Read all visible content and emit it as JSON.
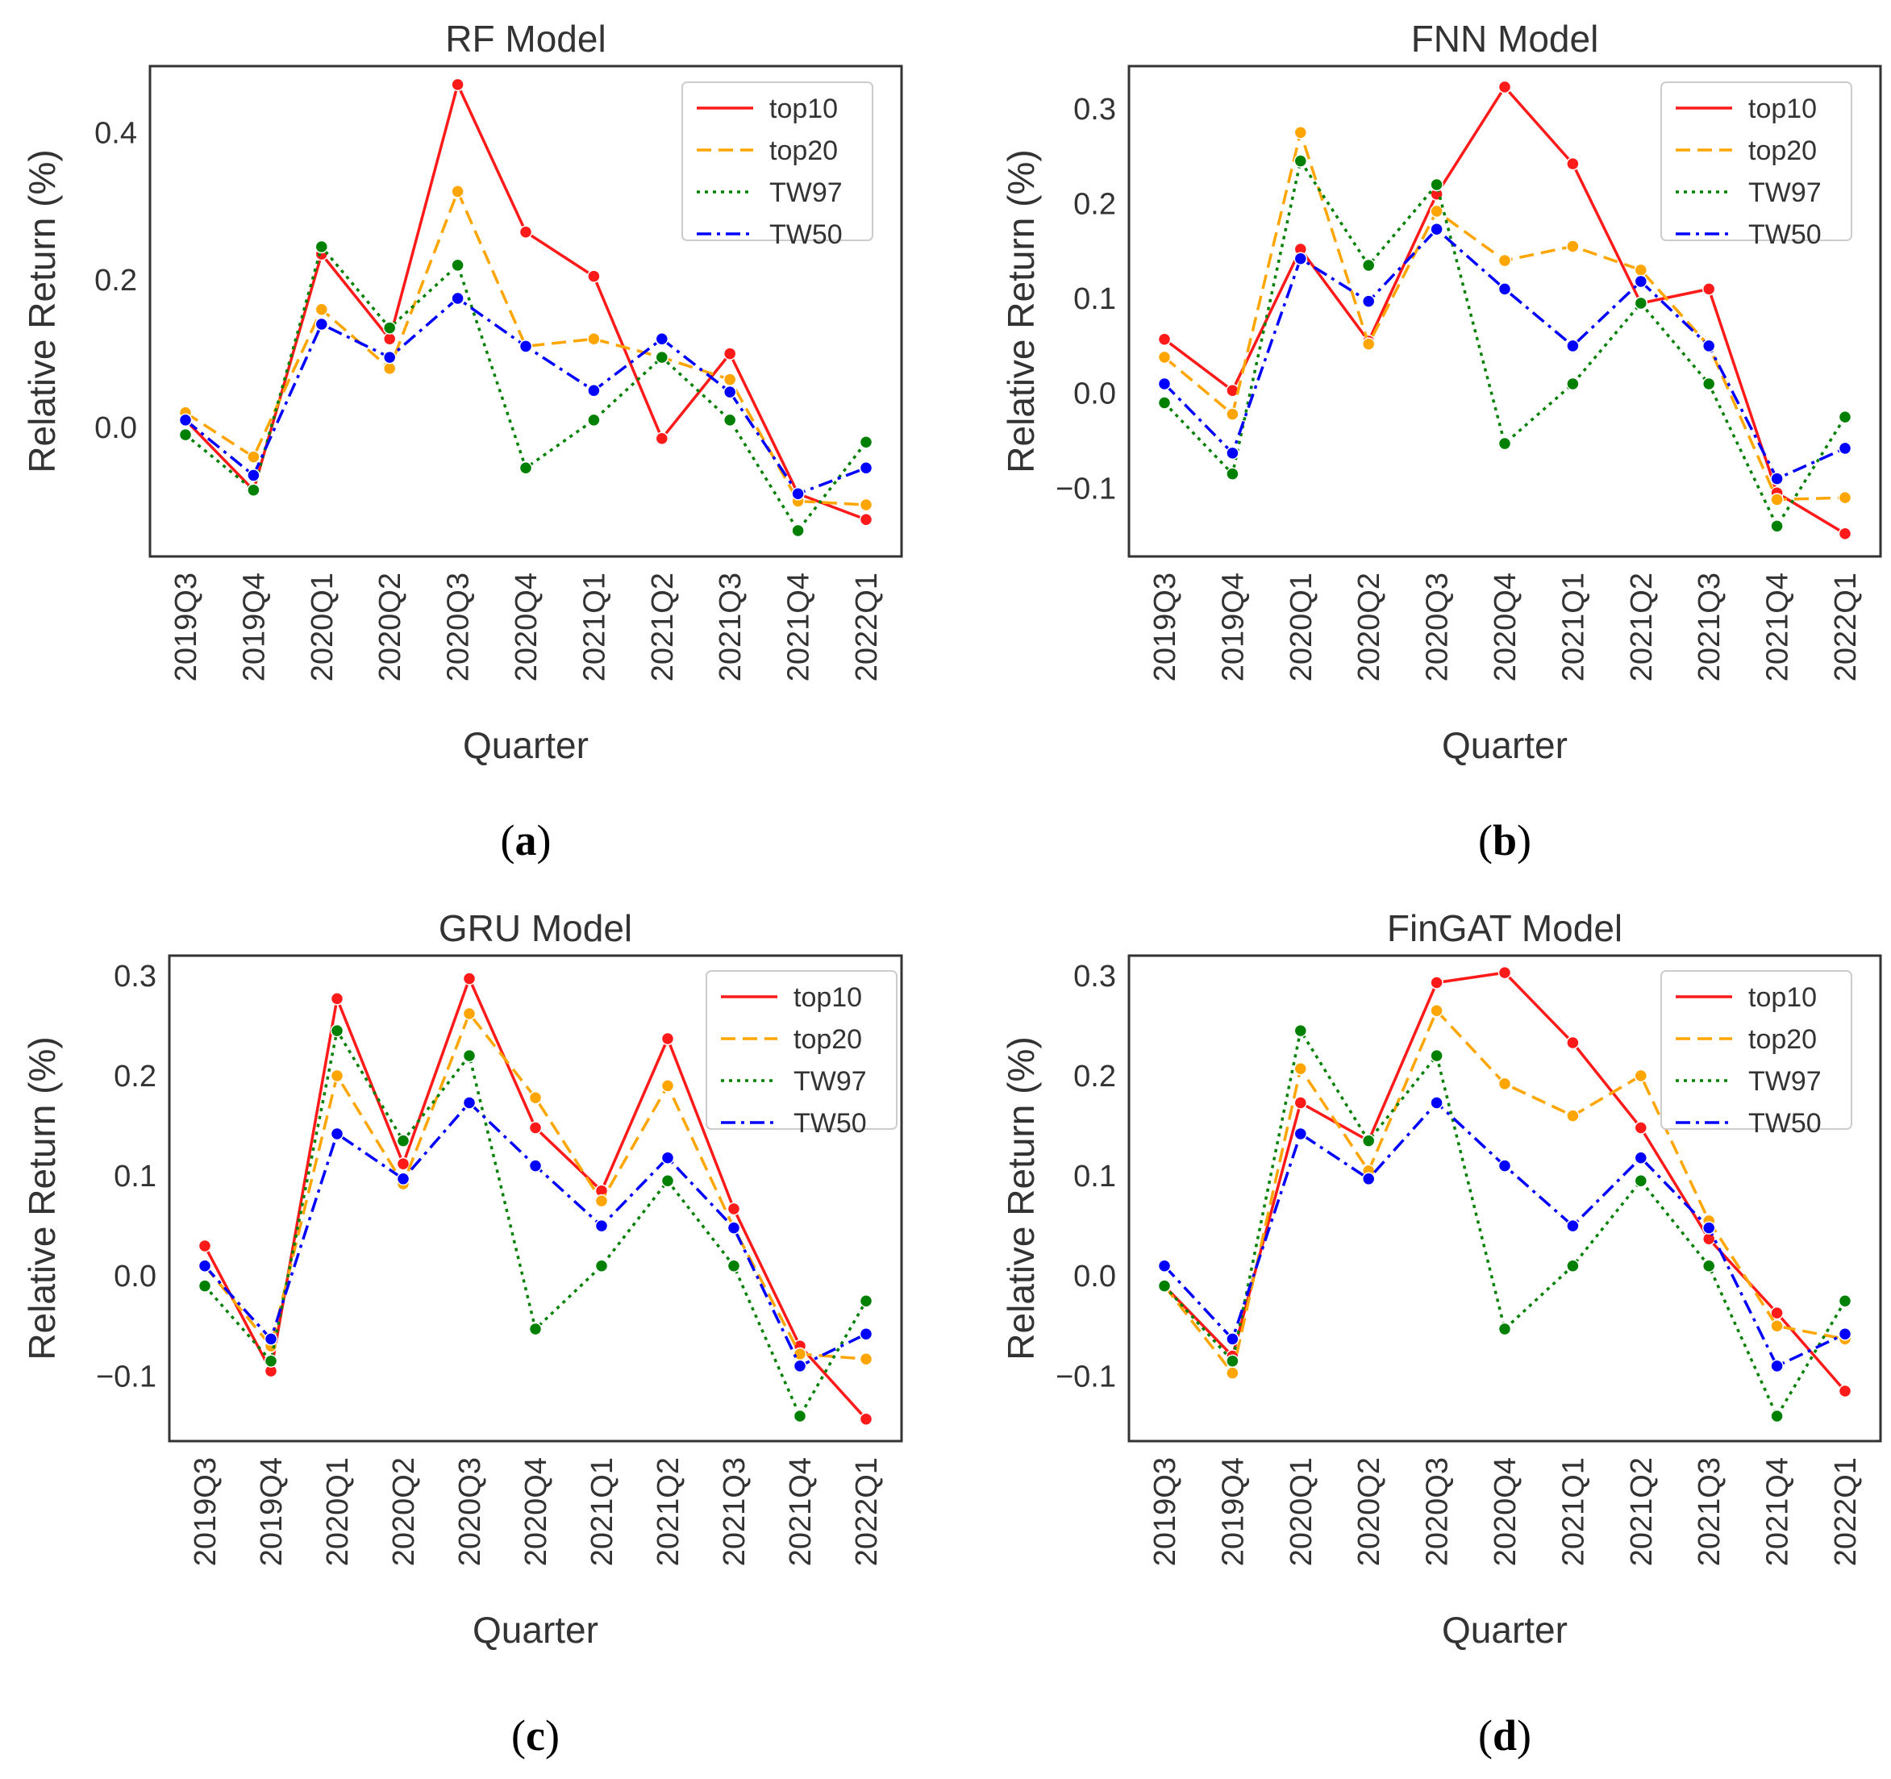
{
  "colors": {
    "top10": "#ff1a1a",
    "top20": "#ffa500",
    "TW97": "#008000",
    "TW50": "#0000ff",
    "axis": "#333333"
  },
  "chart_data": [
    {
      "type": "line",
      "title": "RF Model",
      "caption_letter": "a",
      "xlabel": "Quarter",
      "ylabel": "Relative Return (%)",
      "ylim": [
        -0.175,
        0.49
      ],
      "yticks": [
        0.0,
        0.2,
        0.4
      ],
      "ytick_labels": [
        "0.0",
        "0.2",
        "0.4"
      ],
      "categories": [
        "2019Q3",
        "2019Q4",
        "2020Q1",
        "2020Q2",
        "2020Q3",
        "2020Q4",
        "2021Q1",
        "2021Q2",
        "2021Q3",
        "2021Q4",
        "2022Q1"
      ],
      "series": [
        {
          "name": "top10",
          "style": "solid",
          "values": [
            0.01,
            -0.085,
            0.235,
            0.12,
            0.465,
            0.265,
            0.205,
            -0.015,
            0.1,
            -0.09,
            -0.125
          ]
        },
        {
          "name": "top20",
          "style": "dashed",
          "values": [
            0.02,
            -0.04,
            0.16,
            0.08,
            0.32,
            0.11,
            0.12,
            0.095,
            0.065,
            -0.1,
            -0.105
          ]
        },
        {
          "name": "TW97",
          "style": "dotted",
          "values": [
            -0.01,
            -0.085,
            0.245,
            0.135,
            0.22,
            -0.055,
            0.01,
            0.095,
            0.01,
            -0.14,
            -0.02
          ]
        },
        {
          "name": "TW50",
          "style": "dashdot",
          "values": [
            0.01,
            -0.065,
            0.14,
            0.095,
            0.175,
            0.11,
            0.05,
            0.12,
            0.048,
            -0.09,
            -0.055
          ]
        }
      ]
    },
    {
      "type": "line",
      "title": "FNN Model",
      "caption_letter": "b",
      "xlabel": "Quarter",
      "ylabel": "Relative Return (%)",
      "ylim": [
        -0.172,
        0.345
      ],
      "yticks": [
        -0.1,
        0.0,
        0.1,
        0.2,
        0.3
      ],
      "ytick_labels": [
        "−0.1",
        "0.0",
        "0.1",
        "0.2",
        "0.3"
      ],
      "categories": [
        "2019Q3",
        "2019Q4",
        "2020Q1",
        "2020Q2",
        "2020Q3",
        "2020Q4",
        "2021Q1",
        "2021Q2",
        "2021Q3",
        "2021Q4",
        "2022Q1"
      ],
      "series": [
        {
          "name": "top10",
          "style": "solid",
          "values": [
            0.057,
            0.003,
            0.152,
            0.055,
            0.21,
            0.323,
            0.242,
            0.095,
            0.11,
            -0.105,
            -0.148
          ]
        },
        {
          "name": "top20",
          "style": "dashed",
          "values": [
            0.038,
            -0.022,
            0.275,
            0.052,
            0.192,
            0.14,
            0.155,
            0.13,
            0.05,
            -0.112,
            -0.11
          ]
        },
        {
          "name": "TW97",
          "style": "dotted",
          "values": [
            -0.01,
            -0.085,
            0.245,
            0.135,
            0.22,
            -0.053,
            0.01,
            0.095,
            0.01,
            -0.14,
            -0.025
          ]
        },
        {
          "name": "TW50",
          "style": "dashdot",
          "values": [
            0.01,
            -0.063,
            0.142,
            0.097,
            0.173,
            0.11,
            0.05,
            0.118,
            0.05,
            -0.09,
            -0.058
          ]
        }
      ]
    },
    {
      "type": "line",
      "title": "GRU Model",
      "caption_letter": "c",
      "xlabel": "Quarter",
      "ylabel": "Relative Return (%)",
      "ylim": [
        -0.165,
        0.32
      ],
      "yticks": [
        -0.1,
        0.0,
        0.1,
        0.2,
        0.3
      ],
      "ytick_labels": [
        "−0.1",
        "0.0",
        "0.1",
        "0.2",
        "0.3"
      ],
      "categories": [
        "2019Q3",
        "2019Q4",
        "2020Q1",
        "2020Q2",
        "2020Q3",
        "2020Q4",
        "2021Q1",
        "2021Q2",
        "2021Q3",
        "2021Q4",
        "2022Q1"
      ],
      "series": [
        {
          "name": "top10",
          "style": "solid",
          "values": [
            0.03,
            -0.095,
            0.277,
            0.112,
            0.297,
            0.148,
            0.085,
            0.237,
            0.067,
            -0.07,
            -0.143
          ]
        },
        {
          "name": "top20",
          "style": "dashed",
          "values": [
            0.01,
            -0.07,
            0.2,
            0.092,
            0.262,
            0.178,
            0.075,
            0.19,
            0.048,
            -0.078,
            -0.083
          ]
        },
        {
          "name": "TW97",
          "style": "dotted",
          "values": [
            -0.01,
            -0.085,
            0.245,
            0.135,
            0.22,
            -0.053,
            0.01,
            0.095,
            0.01,
            -0.14,
            -0.025
          ]
        },
        {
          "name": "TW50",
          "style": "dashdot",
          "values": [
            0.01,
            -0.063,
            0.142,
            0.097,
            0.173,
            0.11,
            0.05,
            0.118,
            0.048,
            -0.09,
            -0.058
          ]
        }
      ]
    },
    {
      "type": "line",
      "title": "FinGAT Model",
      "caption_letter": "d",
      "xlabel": "Quarter",
      "ylabel": "Relative Return (%)",
      "ylim": [
        -0.165,
        0.32
      ],
      "yticks": [
        -0.1,
        0.0,
        0.1,
        0.2,
        0.3
      ],
      "ytick_labels": [
        "−0.1",
        "0.0",
        "0.1",
        "0.2",
        "0.3"
      ],
      "categories": [
        "2019Q3",
        "2019Q4",
        "2020Q1",
        "2020Q2",
        "2020Q3",
        "2020Q4",
        "2021Q1",
        "2021Q2",
        "2021Q3",
        "2021Q4",
        "2022Q1"
      ],
      "series": [
        {
          "name": "top10",
          "style": "solid",
          "values": [
            -0.01,
            -0.08,
            0.173,
            0.135,
            0.293,
            0.303,
            0.233,
            0.148,
            0.037,
            -0.037,
            -0.115
          ]
        },
        {
          "name": "top20",
          "style": "dashed",
          "values": [
            -0.01,
            -0.097,
            0.207,
            0.105,
            0.265,
            0.192,
            0.16,
            0.2,
            0.055,
            -0.05,
            -0.063
          ]
        },
        {
          "name": "TW97",
          "style": "dotted",
          "values": [
            -0.01,
            -0.085,
            0.245,
            0.135,
            0.22,
            -0.053,
            0.01,
            0.095,
            0.01,
            -0.14,
            -0.025
          ]
        },
        {
          "name": "TW50",
          "style": "dashdot",
          "values": [
            0.01,
            -0.063,
            0.142,
            0.097,
            0.173,
            0.11,
            0.05,
            0.118,
            0.048,
            -0.09,
            -0.058
          ]
        }
      ]
    }
  ]
}
